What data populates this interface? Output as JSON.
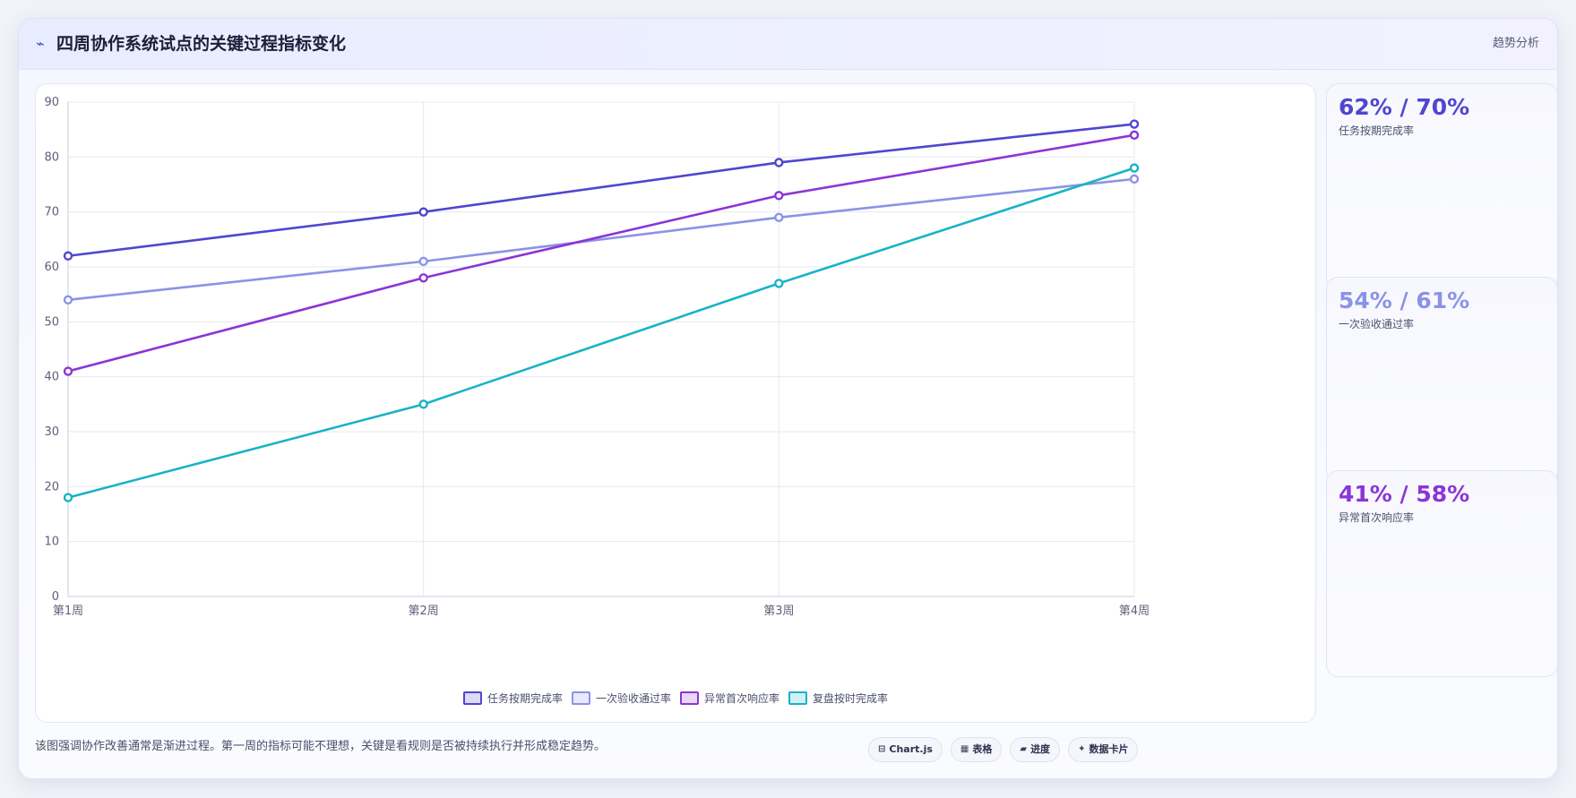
{
  "header": {
    "icon": "trend-icon",
    "title": "四周协作系统试点的关键过程指标变化",
    "tag": "趋势分析"
  },
  "chart_data": {
    "type": "line",
    "title": "",
    "xlabel": "",
    "ylabel": "",
    "categories": [
      "第1周",
      "第2周",
      "第3周",
      "第4周"
    ],
    "ylim": [
      0,
      90
    ],
    "yticks": [
      0,
      10,
      20,
      30,
      40,
      50,
      60,
      70,
      80,
      90
    ],
    "grid": true,
    "legend_position": "bottom",
    "series": [
      {
        "name": "任务按期完成率",
        "color": "#4f46d0",
        "values": [
          62,
          70,
          79,
          86
        ]
      },
      {
        "name": "一次验收通过率",
        "color": "#8b93e6",
        "values": [
          54,
          61,
          69,
          76
        ]
      },
      {
        "name": "异常首次响应率",
        "color": "#8b35d6",
        "values": [
          41,
          58,
          73,
          84
        ]
      },
      {
        "name": "复盘按时完成率",
        "color": "#18b3c7",
        "values": [
          18,
          35,
          57,
          78
        ]
      }
    ]
  },
  "stats": [
    {
      "value": "62% / 70%",
      "label": "任务按期完成率",
      "color": "#4f46d0"
    },
    {
      "value": "54% / 61%",
      "label": "一次验收通过率",
      "color": "#8b93e6"
    },
    {
      "value": "41% / 58%",
      "label": "异常首次响应率",
      "color": "#8b35d6"
    }
  ],
  "footer": {
    "note": "该图强调协作改善通常是渐进过程。第一周的指标可能不理想，关键是看规则是否被持续执行并形成稳定趋势。",
    "chips": [
      {
        "icon": "chart-icon",
        "glyph": "⊟",
        "label": "Chart.js"
      },
      {
        "icon": "table-icon",
        "glyph": "▦",
        "label": "表格"
      },
      {
        "icon": "progress-icon",
        "glyph": "▰",
        "label": "进度"
      },
      {
        "icon": "sparkle-icon",
        "glyph": "✦",
        "label": "数据卡片"
      }
    ]
  }
}
